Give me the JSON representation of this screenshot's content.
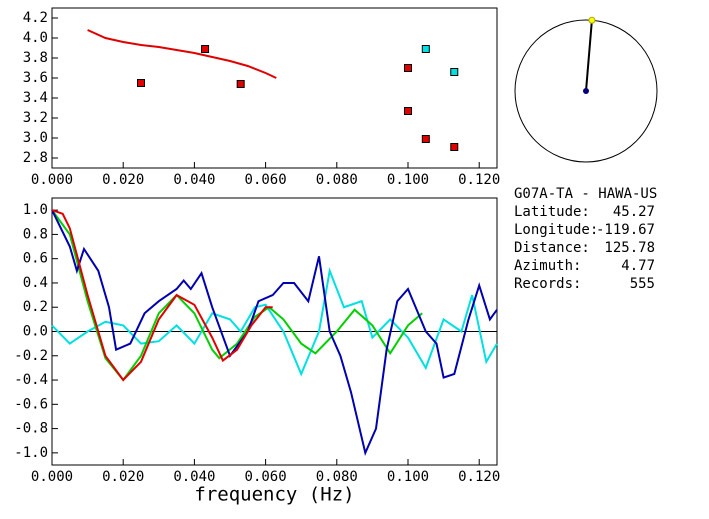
{
  "chart_data": [
    {
      "type": "scatter",
      "xlim": [
        0,
        0.125
      ],
      "ylim": [
        2.7,
        4.3
      ],
      "xticks": [
        {
          "value": 0,
          "label": "0.000"
        },
        {
          "value": 0.02,
          "label": "0.020"
        },
        {
          "value": 0.04,
          "label": "0.040"
        },
        {
          "value": 0.06,
          "label": "0.060"
        },
        {
          "value": 0.08,
          "label": "0.080"
        },
        {
          "value": 0.1,
          "label": "0.100"
        },
        {
          "value": 0.12,
          "label": "0.120"
        }
      ],
      "yticks": [
        2.8,
        {
          "value": 3,
          "label": "3.0"
        },
        3.2,
        3.4,
        3.6,
        3.8,
        {
          "value": 4,
          "label": "4.0"
        },
        4.2
      ],
      "series": [
        {
          "color": "#e00000",
          "mode": "line",
          "x": [
            0.01,
            0.015,
            0.02,
            0.025,
            0.03,
            0.035,
            0.04,
            0.045,
            0.05,
            0.055,
            0.06,
            0.063
          ],
          "values": [
            4.08,
            4.0,
            3.96,
            3.93,
            3.91,
            3.88,
            3.85,
            3.81,
            3.77,
            3.72,
            3.65,
            3.6
          ]
        },
        {
          "color": "#e00000",
          "mode": "markers",
          "x": [
            0.025,
            0.043,
            0.053,
            0.1,
            0.1,
            0.105,
            0.113
          ],
          "values": [
            3.55,
            3.89,
            3.54,
            3.7,
            3.27,
            2.99,
            2.91
          ]
        },
        {
          "color": "#00e0e0",
          "mode": "markers",
          "x": [
            0.105,
            0.113
          ],
          "values": [
            3.89,
            3.66
          ]
        }
      ]
    },
    {
      "type": "line",
      "xlabel": "frequency (Hz)",
      "xlim": [
        0,
        0.125
      ],
      "ylim": [
        -1.1,
        1.1
      ],
      "zero_line": true,
      "xticks": [
        {
          "value": 0,
          "label": "0.000"
        },
        {
          "value": 0.02,
          "label": "0.020"
        },
        {
          "value": 0.04,
          "label": "0.040"
        },
        {
          "value": 0.06,
          "label": "0.060"
        },
        {
          "value": 0.08,
          "label": "0.080"
        },
        {
          "value": 0.1,
          "label": "0.100"
        },
        {
          "value": 0.12,
          "label": "0.120"
        }
      ],
      "yticks": [
        {
          "value": 1,
          "label": "1.0"
        },
        0.8,
        0.6,
        0.4,
        0.2,
        {
          "value": 0,
          "label": "0.0"
        },
        -0.2,
        -0.4,
        -0.6,
        -0.8,
        {
          "value": -1,
          "label": "-1.0"
        }
      ],
      "series": [
        {
          "color": "#00e0e0",
          "x": [
            0,
            0.005,
            0.01,
            0.015,
            0.02,
            0.025,
            0.03,
            0.035,
            0.04,
            0.045,
            0.05,
            0.053,
            0.057,
            0.06,
            0.065,
            0.07,
            0.075,
            0.078,
            0.082,
            0.087,
            0.09,
            0.095,
            0.1,
            0.105,
            0.11,
            0.115,
            0.118,
            0.122,
            0.125
          ],
          "values": [
            0.05,
            -0.1,
            0.0,
            0.08,
            0.05,
            -0.1,
            -0.08,
            0.05,
            -0.1,
            0.15,
            0.1,
            0.0,
            0.2,
            0.22,
            0.0,
            -0.35,
            0.0,
            0.5,
            0.2,
            0.25,
            -0.05,
            0.1,
            -0.05,
            -0.3,
            0.1,
            0.0,
            0.3,
            -0.25,
            -0.1
          ]
        },
        {
          "color": "#00d000",
          "x": [
            0,
            0.005,
            0.01,
            0.015,
            0.02,
            0.025,
            0.03,
            0.035,
            0.04,
            0.045,
            0.047,
            0.052,
            0.057,
            0.061,
            0.065,
            0.07,
            0.074,
            0.08,
            0.085,
            0.09,
            0.095,
            0.1,
            0.104
          ],
          "values": [
            1.0,
            0.8,
            0.25,
            -0.22,
            -0.4,
            -0.2,
            0.15,
            0.3,
            0.15,
            -0.15,
            -0.22,
            -0.1,
            0.12,
            0.2,
            0.1,
            -0.1,
            -0.18,
            0.0,
            0.18,
            0.05,
            -0.18,
            0.05,
            0.15
          ]
        },
        {
          "color": "#0000b0",
          "x": [
            0,
            0.005,
            0.007,
            0.009,
            0.013,
            0.016,
            0.018,
            0.022,
            0.026,
            0.03,
            0.035,
            0.037,
            0.039,
            0.042,
            0.045,
            0.05,
            0.055,
            0.058,
            0.062,
            0.065,
            0.068,
            0.072,
            0.075,
            0.078,
            0.081,
            0.084,
            0.088,
            0.091,
            0.094,
            0.097,
            0.1,
            0.105,
            0.108,
            0.11,
            0.113,
            0.117,
            0.12,
            0.123,
            0.125
          ],
          "values": [
            1.0,
            0.7,
            0.5,
            0.68,
            0.5,
            0.2,
            -0.15,
            -0.1,
            0.15,
            0.25,
            0.35,
            0.42,
            0.35,
            0.48,
            0.2,
            -0.2,
            0.0,
            0.25,
            0.3,
            0.4,
            0.4,
            0.25,
            0.62,
            0.0,
            -0.2,
            -0.5,
            -1.0,
            -0.8,
            -0.15,
            0.25,
            0.35,
            0.0,
            -0.1,
            -0.38,
            -0.35,
            0.1,
            0.38,
            0.1,
            0.18
          ]
        },
        {
          "color": "#e00000",
          "x": [
            0,
            0.003,
            0.005,
            0.01,
            0.015,
            0.02,
            0.025,
            0.03,
            0.035,
            0.04,
            0.045,
            0.048,
            0.052,
            0.056,
            0.06,
            0.062
          ],
          "values": [
            1.0,
            0.97,
            0.85,
            0.3,
            -0.2,
            -0.4,
            -0.25,
            0.1,
            0.3,
            0.22,
            -0.05,
            -0.24,
            -0.15,
            0.05,
            0.2,
            0.2
          ]
        }
      ]
    }
  ],
  "station": {
    "name": "G07A-TA - HAWA-US",
    "fields": [
      {
        "label": "Latitude:",
        "value": 45.27
      },
      {
        "label": "Longitude:",
        "value": -119.67
      },
      {
        "label": "Distance:",
        "value": 125.78
      },
      {
        "label": "Azimuth:",
        "value": 4.77
      },
      {
        "label": "Records:",
        "value": 555
      }
    ]
  }
}
